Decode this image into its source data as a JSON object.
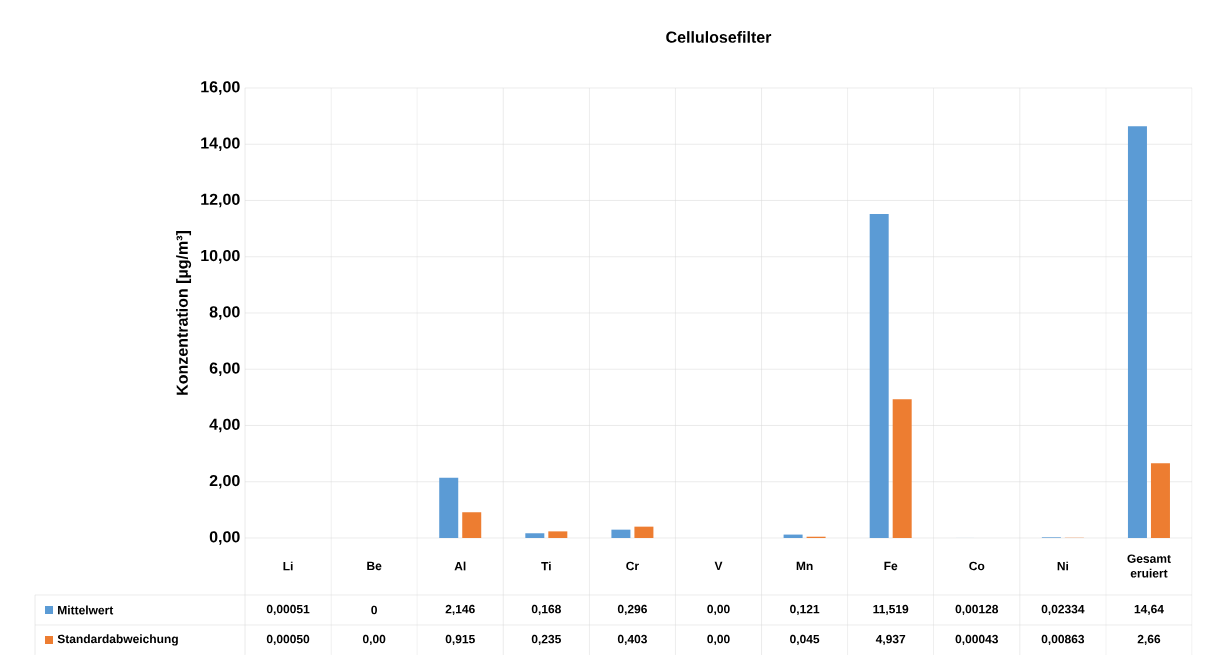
{
  "chart_data": {
    "type": "bar",
    "title": "Cellulosefilter",
    "ylabel": "Konzentration [µg/m³]",
    "categories": [
      "Li",
      "Be",
      "Al",
      "Ti",
      "Cr",
      "V",
      "Mn",
      "Fe",
      "Co",
      "Ni",
      "Gesamt eruiert"
    ],
    "series": [
      {
        "name": "Mittelwert",
        "color": "#5b9bd5",
        "values": [
          0.00051,
          0,
          2.146,
          0.168,
          0.296,
          0,
          0.121,
          11.519,
          0.00128,
          0.02334,
          14.64
        ],
        "value_labels": [
          "0,00051",
          "0",
          "2,146",
          "0,168",
          "0,296",
          "0,00",
          "0,121",
          "11,519",
          "0,00128",
          "0,02334",
          "14,64"
        ]
      },
      {
        "name": "Standardabweichung",
        "color": "#ed7d31",
        "values": [
          0.0005,
          0,
          0.915,
          0.235,
          0.403,
          0,
          0.045,
          4.937,
          0.00043,
          0.00863,
          2.66
        ],
        "value_labels": [
          "0,00050",
          "0,00",
          "0,915",
          "0,235",
          "0,403",
          "0,00",
          "0,045",
          "4,937",
          "0,00043",
          "0,00863",
          "2,66"
        ]
      }
    ],
    "ylim": [
      0,
      16
    ],
    "yticks": [
      {
        "value": 0,
        "label": "0,00"
      },
      {
        "value": 2,
        "label": "2,00"
      },
      {
        "value": 4,
        "label": "4,00"
      },
      {
        "value": 6,
        "label": "6,00"
      },
      {
        "value": 8,
        "label": "8,00"
      },
      {
        "value": 10,
        "label": "10,00"
      },
      {
        "value": 12,
        "label": "12,00"
      },
      {
        "value": 14,
        "label": "14,00"
      },
      {
        "value": 16,
        "label": "16,00"
      }
    ],
    "grid": true,
    "legend": "bottom left"
  }
}
